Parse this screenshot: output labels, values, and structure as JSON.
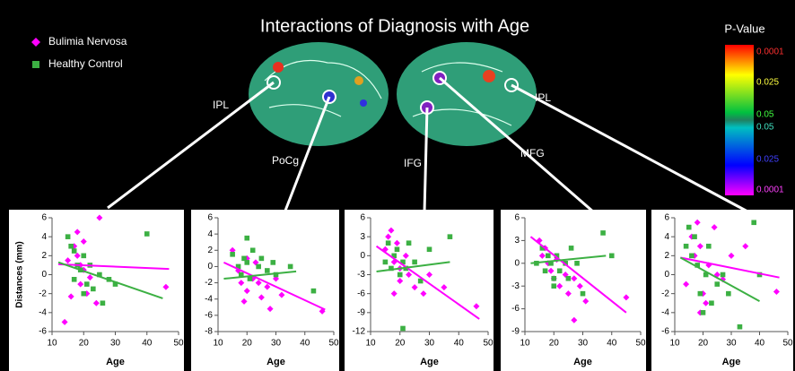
{
  "title": "Interactions of Diagnosis with Age",
  "regions": [
    "IPL",
    "PoCg",
    "IFG",
    "MFG",
    "IPL"
  ],
  "colorbar": {
    "title": "P-Value",
    "labels": [
      "0.0001",
      "0.025",
      "0.05",
      "0.05",
      "0.025",
      "0.0001"
    ]
  },
  "chart_data": [
    {
      "type": "scatter",
      "xlabel": "Age",
      "ylabel": "Distances (mm)",
      "xlim": [
        10,
        50
      ],
      "xticks": [
        10,
        20,
        30,
        40,
        50
      ],
      "ylim": [
        -6,
        6
      ],
      "yticks": [
        -6,
        -4,
        -2,
        0,
        2,
        4,
        6
      ],
      "series": [
        {
          "name": "Bulimia Nervosa",
          "color": "#ff00ff",
          "marker": "diamond",
          "x": [
            14,
            16,
            17,
            18,
            18,
            19,
            19,
            20,
            20,
            21,
            22,
            24,
            25,
            46,
            15
          ],
          "y": [
            -5,
            -2.3,
            3,
            2,
            4.5,
            1,
            -1,
            3.5,
            0.5,
            -2,
            -0.3,
            -3,
            6,
            -1.3,
            1.5
          ],
          "fit_x": [
            12,
            47
          ],
          "fit_y": [
            1.1,
            0.6
          ]
        },
        {
          "name": "Healthy Control",
          "color": "#3cb043",
          "marker": "square",
          "x": [
            15,
            16,
            17,
            18,
            19,
            20,
            21,
            22,
            23,
            25,
            26,
            28,
            30,
            40,
            17,
            20
          ],
          "y": [
            4,
            3,
            2.5,
            1,
            0.5,
            2,
            -1,
            1,
            -1.5,
            0,
            -3,
            -0.5,
            -1,
            4.3,
            -0.5,
            -2
          ],
          "fit_x": [
            12,
            45
          ],
          "fit_y": [
            1.3,
            -2.5
          ]
        }
      ]
    },
    {
      "type": "scatter",
      "xlabel": "Age",
      "xlim": [
        10,
        50
      ],
      "xticks": [
        10,
        20,
        30,
        40,
        50
      ],
      "ylim": [
        -8,
        6
      ],
      "yticks": [
        -8,
        -6,
        -4,
        -2,
        0,
        2,
        4,
        6
      ],
      "series": [
        {
          "color": "#ff00ff",
          "marker": "diamond",
          "x": [
            15,
            17,
            18,
            19,
            20,
            22,
            23,
            25,
            27,
            28,
            30,
            32,
            46,
            20,
            24
          ],
          "y": [
            2,
            -0.5,
            -2,
            -4.3,
            -3,
            -1.5,
            0.5,
            -3.8,
            -2.5,
            -5.2,
            -1.5,
            -3.5,
            -5.5,
            1,
            -2
          ],
          "fit_x": [
            12,
            47
          ],
          "fit_y": [
            0.5,
            -5.3
          ]
        },
        {
          "color": "#3cb043",
          "marker": "square",
          "x": [
            15,
            17,
            18,
            19,
            20,
            21,
            22,
            24,
            25,
            27,
            29,
            30,
            35,
            43,
            20
          ],
          "y": [
            1.5,
            0,
            -1,
            1,
            0.5,
            -1.5,
            2,
            0,
            1,
            -0.5,
            0.5,
            -1,
            0,
            -3,
            3.5
          ],
          "fit_x": [
            12,
            37
          ],
          "fit_y": [
            -1.5,
            -0.6
          ]
        }
      ]
    },
    {
      "type": "scatter",
      "xlabel": "Age",
      "xlim": [
        10,
        50
      ],
      "xticks": [
        10,
        20,
        30,
        40,
        50
      ],
      "ylim": [
        -12,
        6
      ],
      "yticks": [
        -12,
        -9,
        -6,
        -3,
        0,
        3,
        6
      ],
      "series": [
        {
          "color": "#ff00ff",
          "marker": "diamond",
          "x": [
            15,
            16,
            17,
            18,
            19,
            20,
            20,
            22,
            23,
            25,
            28,
            30,
            35,
            46,
            18
          ],
          "y": [
            1,
            3,
            4,
            -1,
            2,
            -2,
            -4,
            0,
            -3,
            -5,
            -6,
            -3,
            -5,
            -8,
            -6
          ],
          "fit_x": [
            12,
            47
          ],
          "fit_y": [
            1.5,
            -10
          ]
        },
        {
          "color": "#3cb043",
          "marker": "square",
          "x": [
            15,
            16,
            17,
            18,
            19,
            20,
            21,
            22,
            23,
            25,
            27,
            30,
            37,
            21
          ],
          "y": [
            -1,
            2,
            -2,
            0,
            1,
            -3,
            -1,
            -2,
            2,
            -1,
            -4,
            1,
            3,
            -11.5
          ],
          "fit_x": [
            12,
            37
          ],
          "fit_y": [
            -2.5,
            -1
          ]
        }
      ]
    },
    {
      "type": "scatter",
      "xlabel": "Age",
      "xlim": [
        10,
        50
      ],
      "xticks": [
        10,
        20,
        30,
        40,
        50
      ],
      "ylim": [
        -9,
        6
      ],
      "yticks": [
        -9,
        -6,
        -3,
        0,
        3,
        6
      ],
      "series": [
        {
          "color": "#ff00ff",
          "marker": "diamond",
          "x": [
            15,
            16,
            17,
            18,
            19,
            20,
            21,
            22,
            24,
            25,
            27,
            29,
            31,
            45,
            27
          ],
          "y": [
            3,
            1,
            2,
            0,
            -1,
            -2,
            0.5,
            -3,
            -1.5,
            -4,
            -2,
            -3,
            -5,
            -4.5,
            -7.5
          ],
          "fit_x": [
            12,
            45
          ],
          "fit_y": [
            3.5,
            -6.5
          ]
        },
        {
          "color": "#3cb043",
          "marker": "square",
          "x": [
            14,
            16,
            17,
            18,
            19,
            20,
            21,
            22,
            24,
            25,
            26,
            28,
            30,
            37,
            40,
            20
          ],
          "y": [
            0,
            2,
            -1,
            1,
            0,
            -3,
            1,
            -1,
            0,
            -2,
            2,
            0,
            -4,
            4,
            1,
            -2
          ],
          "fit_x": [
            12,
            38
          ],
          "fit_y": [
            0,
            1
          ]
        }
      ]
    },
    {
      "type": "scatter",
      "xlabel": "Age",
      "xlim": [
        10,
        50
      ],
      "xticks": [
        10,
        20,
        30,
        40,
        50
      ],
      "ylim": [
        -6,
        6
      ],
      "yticks": [
        -6,
        -4,
        -2,
        0,
        2,
        4,
        6
      ],
      "series": [
        {
          "color": "#ff00ff",
          "marker": "diamond",
          "x": [
            14,
            16,
            17,
            18,
            19,
            20,
            21,
            22,
            24,
            25,
            27,
            30,
            35,
            46,
            19
          ],
          "y": [
            -1,
            4,
            2,
            5.5,
            3,
            -2,
            -3,
            1,
            5,
            0,
            -0.5,
            2,
            3,
            -1.8,
            -4
          ],
          "fit_x": [
            12,
            47
          ],
          "fit_y": [
            1.8,
            -0.3
          ]
        },
        {
          "color": "#3cb043",
          "marker": "square",
          "x": [
            14,
            15,
            16,
            17,
            18,
            19,
            20,
            21,
            22,
            23,
            25,
            27,
            29,
            33,
            38,
            40
          ],
          "y": [
            3,
            5,
            2,
            4,
            1,
            -2,
            -4,
            0,
            3,
            -3,
            -1,
            0,
            -2,
            -5.5,
            5.5,
            0
          ],
          "fit_x": [
            12,
            40
          ],
          "fit_y": [
            1.8,
            -2.8
          ]
        }
      ]
    }
  ]
}
